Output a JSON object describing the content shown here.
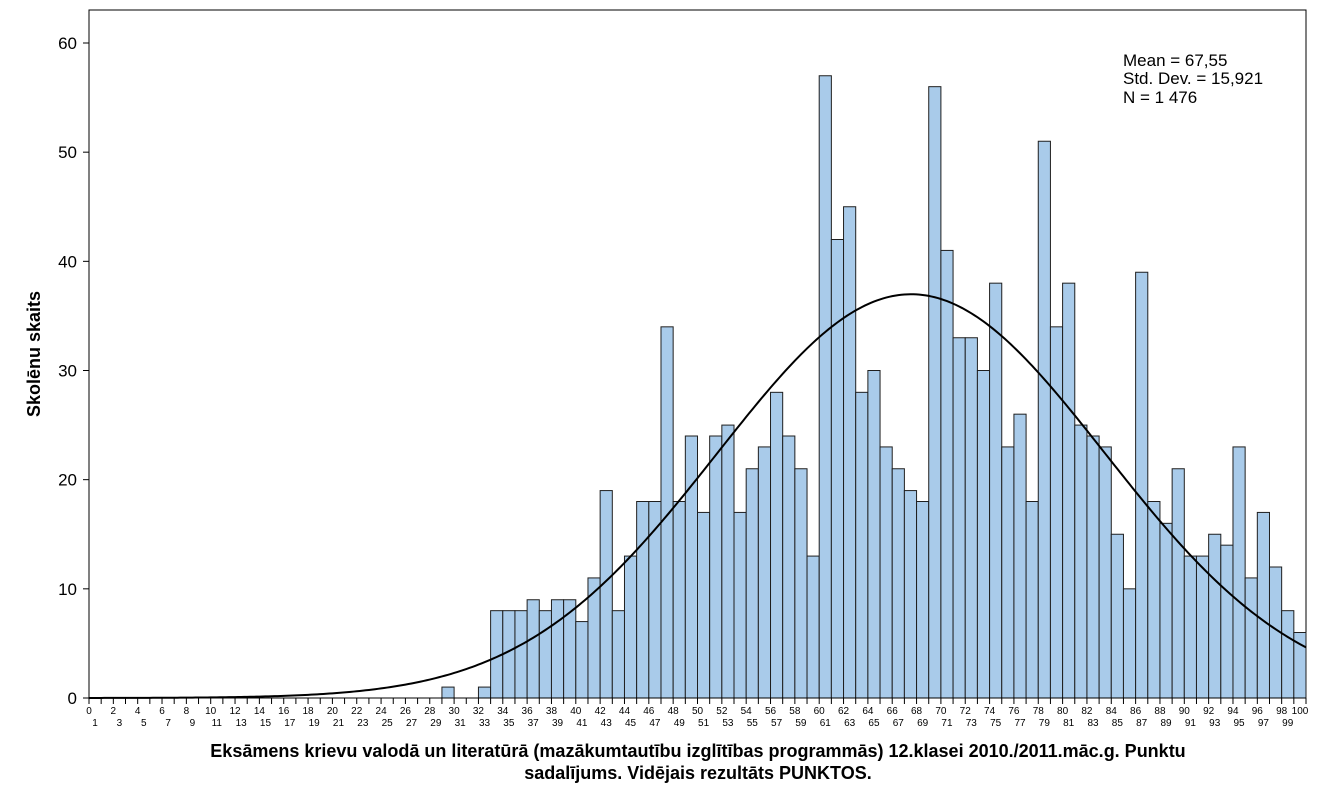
{
  "chart_data": {
    "type": "bar",
    "xlabel_line1": "Eksāmens krievu valodā un literatūrā (mazākumtautību izglītības programmās) 12.klasei 2010./2011.māc.g. Punktu",
    "xlabel_line2": "sadalījums. Vidējais rezultāts PUNKTOS.",
    "ylabel": "Skolēnu skaits",
    "ylim": [
      0,
      62
    ],
    "yticks": [
      0,
      10,
      20,
      30,
      40,
      50,
      60
    ],
    "xlim": [
      0,
      100
    ],
    "grid": false,
    "stats": {
      "mean_label": "Mean = 67,55",
      "sd_label": "Std. Dev. = 15,921",
      "n_label": "N = 1 476"
    },
    "normal_curve": {
      "mean": 67.55,
      "sd": 15.921,
      "n": 1476,
      "bin_width": 1
    },
    "categories": [
      0,
      1,
      2,
      3,
      4,
      5,
      6,
      7,
      8,
      9,
      10,
      11,
      12,
      13,
      14,
      15,
      16,
      17,
      18,
      19,
      20,
      21,
      22,
      23,
      24,
      25,
      26,
      27,
      28,
      29,
      30,
      31,
      32,
      33,
      34,
      35,
      36,
      37,
      38,
      39,
      40,
      41,
      42,
      43,
      44,
      45,
      46,
      47,
      48,
      49,
      50,
      51,
      52,
      53,
      54,
      55,
      56,
      57,
      58,
      59,
      60,
      61,
      62,
      63,
      64,
      65,
      66,
      67,
      68,
      69,
      70,
      71,
      72,
      73,
      74,
      75,
      76,
      77,
      78,
      79,
      80,
      81,
      82,
      83,
      84,
      85,
      86,
      87,
      88,
      89,
      90,
      91,
      92,
      93,
      94,
      95,
      96,
      97,
      98,
      99
    ],
    "values": [
      0,
      0,
      0,
      0,
      0,
      0,
      0,
      0,
      0,
      0,
      0,
      0,
      0,
      0,
      0,
      0,
      0,
      0,
      0,
      0,
      0,
      0,
      0,
      0,
      0,
      0,
      0,
      0,
      0,
      1,
      0,
      0,
      1,
      8,
      8,
      8,
      9,
      8,
      9,
      9,
      7,
      11,
      19,
      8,
      13,
      18,
      18,
      34,
      18,
      24,
      17,
      24,
      25,
      17,
      21,
      23,
      28,
      24,
      21,
      13,
      57,
      42,
      45,
      28,
      30,
      23,
      21,
      19,
      18,
      56,
      41,
      33,
      33,
      30,
      38,
      23,
      26,
      18,
      51,
      34,
      38,
      25,
      24,
      23,
      15,
      10,
      39,
      18,
      16,
      21,
      13,
      13,
      15,
      14,
      23,
      11,
      17,
      12,
      8,
      6
    ],
    "colors": {
      "bar_fill": "#a9cbea",
      "bar_stroke": "#1f1f1f",
      "curve": "#000000"
    }
  }
}
